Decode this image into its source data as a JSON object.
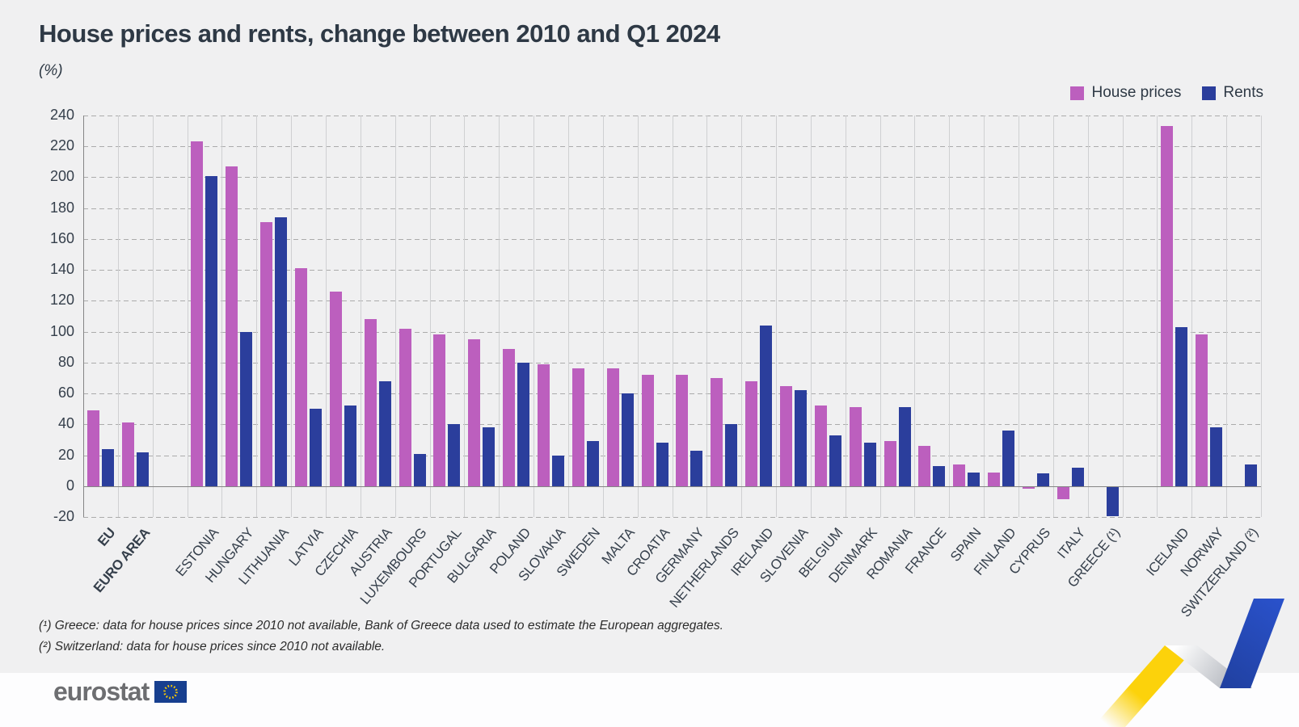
{
  "header": {
    "title": "House prices and rents, change between 2010 and Q1 2024",
    "subtitle": "(%)"
  },
  "colors": {
    "house_prices": "#bc5fbe",
    "rents": "#2b3e9c",
    "background": "#f0f0f1",
    "title_text": "#2e3945",
    "gridline": "#cfd0d2",
    "axis": "#858585"
  },
  "chart_data": {
    "type": "bar",
    "title": "House prices and rents, change between 2010 and Q1 2024",
    "ylabel": "(%)",
    "ylim": [
      -20,
      240
    ],
    "ytick_step": 20,
    "grid": true,
    "legend_position": "top-right",
    "categories": [
      "EU",
      "EURO AREA",
      "ESTONIA",
      "HUNGARY",
      "LITHUANIA",
      "LATVIA",
      "CZECHIA",
      "AUSTRIA",
      "LUXEMBOURG",
      "PORTUGAL",
      "BULGARIA",
      "POLAND",
      "SLOVAKIA",
      "SWEDEN",
      "MALTA",
      "CROATIA",
      "GERMANY",
      "NETHERLANDS",
      "IRELAND",
      "SLOVENIA",
      "BELGIUM",
      "DENMARK",
      "ROMANIA",
      "FRANCE",
      "SPAIN",
      "FINLAND",
      "CYPRUS",
      "ITALY",
      "GREECE (¹)",
      "ICELAND",
      "NORWAY",
      "SWITZERLAND (²)"
    ],
    "bold_categories": [
      "EU",
      "EURO AREA"
    ],
    "column_gaps_after_index": [
      1,
      28
    ],
    "series": [
      {
        "name": "House prices",
        "color": "#bc5fbe",
        "values": [
          49,
          41,
          223,
          207,
          171,
          141,
          126,
          108,
          102,
          98,
          95,
          89,
          79,
          76,
          76,
          72,
          72,
          70,
          68,
          65,
          52,
          51,
          29,
          26,
          14,
          9,
          -1,
          -8,
          null,
          233,
          98,
          null
        ]
      },
      {
        "name": "Rents",
        "color": "#2b3e9c",
        "values": [
          24,
          22,
          201,
          100,
          174,
          50,
          52,
          68,
          21,
          40,
          38,
          80,
          20,
          29,
          60,
          28,
          23,
          40,
          104,
          62,
          33,
          28,
          51,
          13,
          9,
          36,
          8,
          12,
          -19,
          103,
          38,
          14
        ]
      }
    ]
  },
  "footnotes": [
    "(¹) Greece: data for house prices since 2010 not available, Bank of Greece data used to estimate the European aggregates.",
    "(²) Switzerland: data for house prices since 2010 not available."
  ],
  "logo": {
    "text": "eurostat"
  }
}
